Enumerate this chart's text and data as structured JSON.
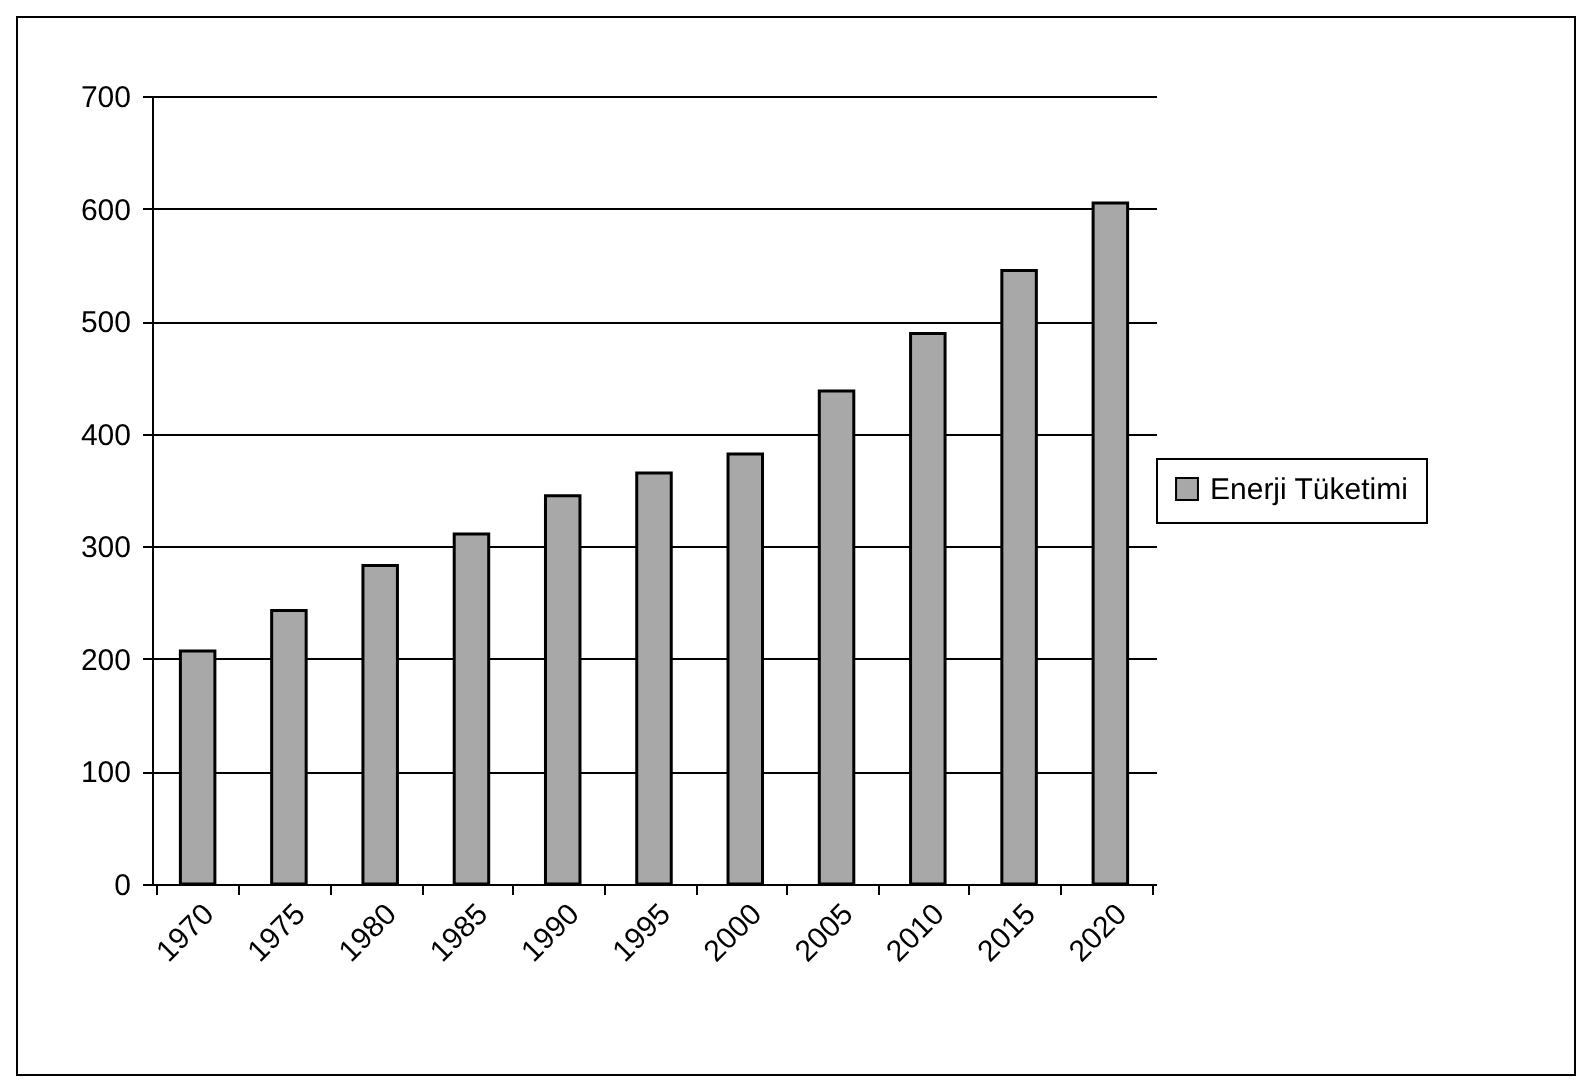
{
  "chart_data": {
    "type": "bar",
    "categories": [
      "1970",
      "1975",
      "1980",
      "1985",
      "1990",
      "1995",
      "2000",
      "2005",
      "2010",
      "2015",
      "2020"
    ],
    "series": [
      {
        "name": "Enerji Tüketimi",
        "color": "#a8a8a8",
        "values": [
          207,
          243,
          283,
          311,
          345,
          365,
          382,
          438,
          489,
          545,
          605
        ]
      }
    ],
    "ylim": [
      0,
      700
    ],
    "yticks": [
      0,
      100,
      200,
      300,
      400,
      500,
      600,
      700
    ],
    "grid": "y",
    "legend": "right"
  }
}
